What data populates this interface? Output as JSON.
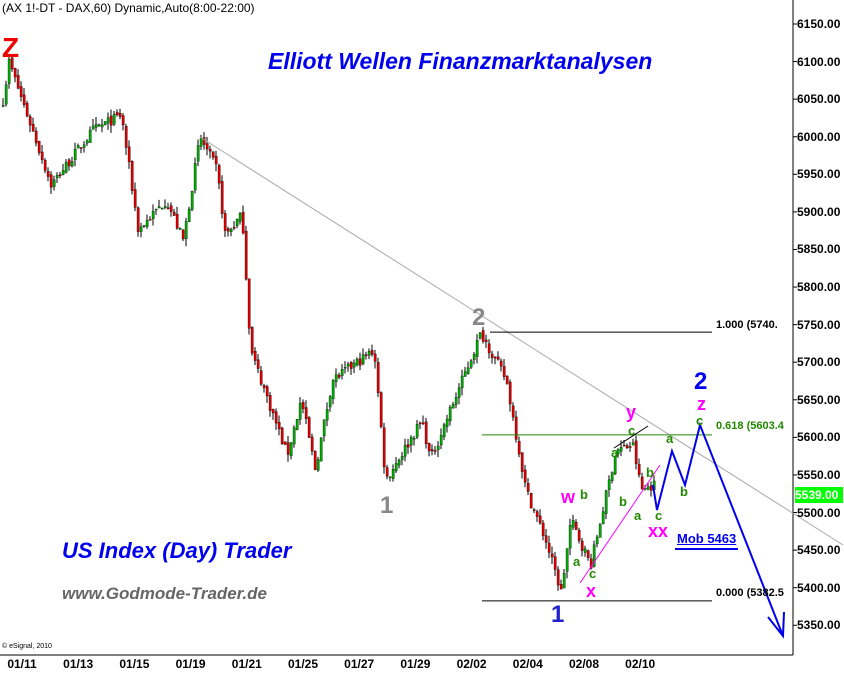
{
  "header": {
    "title": "(AX 1!-DT - DAX,60) Dynamic,Auto(8:00-22:00)",
    "copyright": "© eSignal, 2010"
  },
  "branding": {
    "headline": "Elliott Wellen Finanzmarktanalysen",
    "trader": "US Index (Day) Trader",
    "url": "www.Godmode-Trader.de"
  },
  "colors": {
    "up": "#00aa00",
    "down": "#dd0000",
    "wave_blue": "#0000ee",
    "magenta": "#ff00ff",
    "fib_green": "#228800",
    "price_box": "#00ff00"
  },
  "chart_data": {
    "type": "candlestick",
    "interval": "60 min",
    "ylim": [
      5300,
      6180
    ],
    "y_ticks": [
      "6150.00",
      "6100.00",
      "6050.00",
      "6000.00",
      "5950.00",
      "5900.00",
      "5850.00",
      "5800.00",
      "5750.00",
      "5700.00",
      "5650.00",
      "5600.00",
      "5550.00",
      "5500.00",
      "5450.00",
      "5400.00",
      "5350.00"
    ],
    "x_ticks": [
      "01/11",
      "01/13",
      "01/15",
      "01/19",
      "01/21",
      "01/25",
      "01/27",
      "01/29",
      "02/02",
      "02/04",
      "02/08",
      "02/10"
    ],
    "swing_points": [
      [
        -0.7,
        6049
      ],
      [
        -0.5,
        6100
      ],
      [
        1.0,
        5936
      ],
      [
        2.5,
        6009
      ],
      [
        3.5,
        6029
      ],
      [
        4.1,
        5876
      ],
      [
        5.1,
        5916
      ],
      [
        5.7,
        5862
      ],
      [
        6.3,
        6000
      ],
      [
        6.9,
        5956
      ],
      [
        7.2,
        5869
      ],
      [
        7.8,
        5896
      ],
      [
        8.1,
        5716
      ],
      [
        9.4,
        5576
      ],
      [
        9.9,
        5650
      ],
      [
        10.4,
        5557
      ],
      [
        11.0,
        5676
      ],
      [
        12.5,
        5716
      ],
      [
        12.9,
        5543
      ],
      [
        14.2,
        5623
      ],
      [
        14.5,
        5570
      ],
      [
        16.3,
        5739
      ],
      [
        17.2,
        5676
      ],
      [
        17.9,
        5530
      ],
      [
        18.6,
        5463
      ],
      [
        19.15,
        5394
      ],
      [
        19.5,
        5490
      ],
      [
        20.2,
        5430
      ],
      [
        21.1,
        5583
      ],
      [
        21.7,
        5590
      ],
      [
        22.0,
        5530
      ],
      [
        22.4,
        5537
      ]
    ],
    "last_price": "5539.00",
    "fibonacci": [
      {
        "level": "1.000 (5740.",
        "price": 5740
      },
      {
        "level": "0.618 (5603.4",
        "price": 5603.4
      },
      {
        "level": "0.000 (5382.5",
        "price": 5382.5
      }
    ],
    "target_note": "Mob 5463"
  },
  "waves": {
    "Z": "Z",
    "two_grey": "2",
    "one_grey": "1",
    "one_blue": "1",
    "two_blue": "2",
    "z": "z",
    "y": "y",
    "w": "w",
    "x": "x",
    "xx": "xx",
    "a": "a",
    "b": "b",
    "c": "c"
  }
}
